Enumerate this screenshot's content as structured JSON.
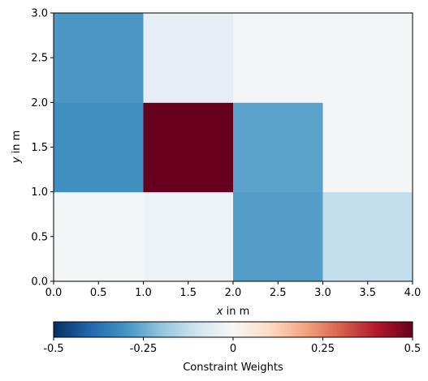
{
  "chart_data": {
    "type": "heatmap",
    "x": [
      0.0,
      1.0,
      2.0,
      3.0,
      4.0
    ],
    "y": [
      0.0,
      1.0,
      2.0,
      3.0
    ],
    "xlim": [
      0.0,
      4.0
    ],
    "ylim": [
      0.0,
      3.0
    ],
    "x_ticks": [
      "0.0",
      "0.5",
      "1.0",
      "1.5",
      "2.0",
      "2.5",
      "3.0",
      "3.5",
      "4.0"
    ],
    "y_ticks": [
      "0.0",
      "0.5",
      "1.0",
      "1.5",
      "2.0",
      "2.5",
      "3.0"
    ],
    "xlabel_var": "x",
    "xlabel_rest": " in m",
    "ylabel_var": "y",
    "ylabel_rest": " in m",
    "grid": false,
    "values": [
      [
        -0.01,
        -0.03,
        -0.28,
        -0.12
      ],
      [
        -0.31,
        0.5,
        -0.27,
        -0.01
      ],
      [
        -0.29,
        -0.05,
        -0.01,
        -0.01
      ]
    ],
    "colorbar": {
      "colormap": "RdBu_r",
      "range": [
        -0.5,
        0.5
      ],
      "orientation": "horizontal",
      "ticks": [
        "-0.5",
        "-0.25",
        "0",
        "0.25",
        "0.5"
      ],
      "label": "Constraint Weights"
    }
  }
}
